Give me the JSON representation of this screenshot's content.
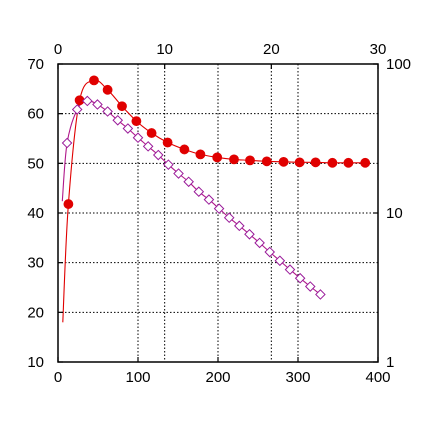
{
  "chart_data": {
    "type": "scatter",
    "title": "",
    "xlabel": "",
    "ylabel": "",
    "grid": true,
    "axes": {
      "bottom": {
        "range": [
          0,
          400
        ],
        "ticks": [
          0,
          100,
          200,
          300,
          400
        ],
        "tick_labels": [
          "0",
          "100",
          "200",
          "300",
          "400"
        ]
      },
      "top": {
        "range": [
          0,
          30
        ],
        "ticks": [
          0,
          10,
          20,
          30
        ],
        "tick_labels": [
          "0",
          "10",
          "20",
          "30"
        ]
      },
      "left": {
        "range": [
          10,
          70
        ],
        "ticks": [
          10,
          20,
          30,
          40,
          50,
          60,
          70
        ],
        "tick_labels": [
          "10",
          "20",
          "30",
          "40",
          "50",
          "60",
          "70"
        ]
      },
      "right": {
        "scale": "log",
        "range": [
          1,
          100
        ],
        "ticks": [
          1,
          10,
          100
        ],
        "tick_labels": [
          "1",
          "10",
          "100"
        ]
      }
    },
    "series": [
      {
        "marker": "filled-circle",
        "color": "#e00000",
        "line_color": "#e00000",
        "x_axis": "bottom",
        "y_axis": "left",
        "x": [
          13,
          27,
          45,
          62,
          80,
          98,
          117,
          137,
          158,
          178,
          199,
          220,
          240,
          261,
          282,
          302,
          322,
          343,
          363,
          384
        ],
        "y": [
          41.8,
          62.7,
          66.7,
          64.8,
          61.5,
          58.5,
          56.1,
          54.2,
          52.8,
          51.8,
          51.2,
          50.8,
          50.6,
          50.4,
          50.3,
          50.2,
          50.2,
          50.1,
          50.1,
          50.1
        ],
        "curve_start": [
          6,
          18
        ]
      },
      {
        "marker": "open-diamond",
        "color": "#9a1c9a",
        "line_color": "#b0188a",
        "x_axis": "top",
        "y_axis": "right",
        "x": [
          0.85,
          1.8,
          2.75,
          3.7,
          4.65,
          5.6,
          6.55,
          7.5,
          8.45,
          9.4,
          10.35,
          11.3,
          12.25,
          13.2,
          14.15,
          15.1,
          16.05,
          17.0,
          17.95,
          18.9,
          19.85,
          20.8,
          21.75,
          22.7,
          23.65,
          24.6
        ],
        "y": [
          29.5,
          49.5,
          56.5,
          53.5,
          48.0,
          41.9,
          36.9,
          32.0,
          28.0,
          24.5,
          21.1,
          18.4,
          16.2,
          13.9,
          12.3,
          10.7,
          9.3,
          8.2,
          7.2,
          6.3,
          5.47,
          4.78,
          4.17,
          3.65,
          3.21,
          2.84
        ],
        "curve_start": [
          0.4,
          12.0
        ]
      }
    ]
  }
}
